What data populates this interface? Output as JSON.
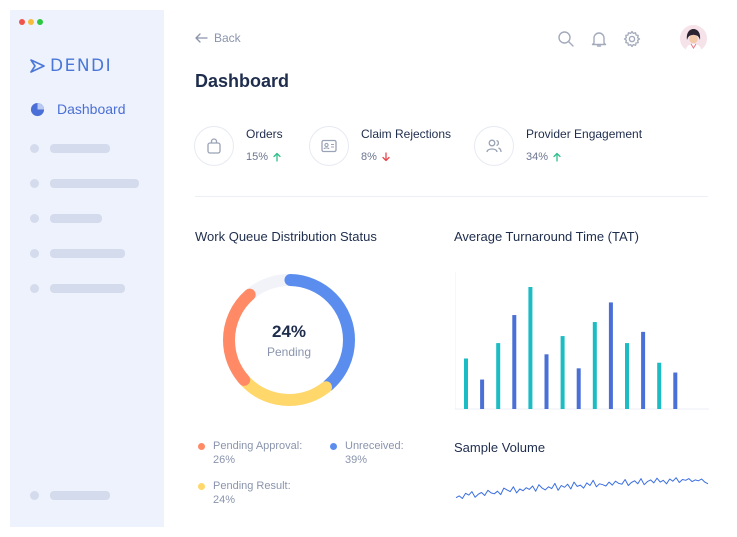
{
  "window": {
    "traffic_colors": [
      "#f0534b",
      "#f6bd3a",
      "#2cc840"
    ]
  },
  "brand": {
    "name": "DENDI",
    "color": "#4a77d8"
  },
  "sidebar": {
    "active_item": {
      "label": "Dashboard",
      "icon": "pie-chart-icon"
    },
    "placeholder_items": 6
  },
  "header": {
    "back_label": "Back",
    "title": "Dashboard",
    "icons": [
      "search-icon",
      "bell-icon",
      "gear-icon",
      "avatar"
    ]
  },
  "stats": [
    {
      "name": "Orders",
      "value": "15%",
      "trend": "up",
      "icon": "bag-icon"
    },
    {
      "name": "Claim Rejections",
      "value": "8%",
      "trend": "down",
      "icon": "id-card-icon"
    },
    {
      "name": "Provider Engagement",
      "value": "34%",
      "trend": "up",
      "icon": "users-icon"
    }
  ],
  "colors": {
    "up": "#2fbf8a",
    "down": "#e5484d",
    "teal": "#1bbcc4",
    "blue": "#4a6fd6",
    "orange": "#ff8a65",
    "yellow": "#ffd76a",
    "ring_blue": "#5b8def"
  },
  "work_queue": {
    "title": "Work Queue Distribution Status",
    "center_value": "24%",
    "center_label": "Pending",
    "legend": [
      {
        "label": "Pending Approval:",
        "value": "26%",
        "color": "#ff8a65"
      },
      {
        "label": "Unreceived:",
        "value": "39%",
        "color": "#5b8def"
      },
      {
        "label": "Pending Result:",
        "value": "24%",
        "color": "#ffd76a"
      }
    ]
  },
  "tat": {
    "title": "Average Turnaround Time (TAT)"
  },
  "sample": {
    "title": "Sample Volume"
  },
  "chart_data": [
    {
      "type": "pie",
      "categories": [
        "Pending Approval",
        "Unreceived",
        "Pending Result",
        "Pending"
      ],
      "values": [
        26,
        39,
        24,
        11
      ]
    },
    {
      "type": "bar",
      "title": "Average Turnaround Time (TAT)",
      "values": [
        36,
        21,
        47,
        67,
        87,
        39,
        52,
        29,
        62,
        76,
        47,
        55,
        33,
        26
      ],
      "colors": [
        "teal",
        "blue",
        "teal",
        "blue",
        "teal",
        "blue",
        "teal",
        "blue",
        "teal",
        "blue",
        "teal",
        "blue",
        "teal",
        "blue"
      ],
      "ylim": [
        0,
        100
      ]
    },
    {
      "type": "line",
      "title": "Sample Volume",
      "values": [
        30,
        34,
        28,
        40,
        36,
        44,
        31,
        38,
        42,
        35,
        47,
        41,
        39,
        45,
        37,
        52,
        48,
        44,
        55,
        41,
        50,
        46,
        53,
        49,
        57,
        45,
        60,
        52,
        48,
        55,
        51,
        63,
        47,
        58,
        54,
        61,
        50,
        66,
        56,
        59,
        52,
        64,
        58,
        70,
        55,
        62,
        60,
        57,
        66,
        59,
        68,
        63,
        61,
        72,
        58,
        65,
        69,
        62,
        74,
        60,
        67,
        71,
        64,
        75,
        66,
        70,
        62,
        73,
        68,
        76,
        65,
        72,
        70,
        74,
        67,
        71,
        69,
        73,
        66,
        62
      ]
    }
  ]
}
